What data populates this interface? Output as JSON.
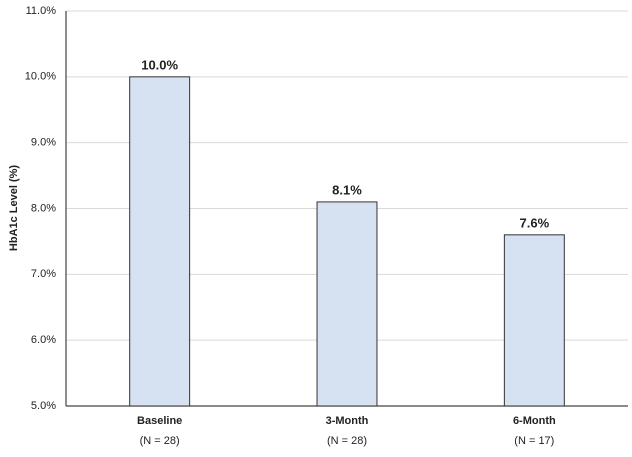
{
  "chart_data": {
    "type": "bar",
    "y_label": "HbA1c Level (%)",
    "categories": [
      "Baseline",
      "3-Month",
      "6-Month"
    ],
    "category_notes": [
      "(N = 28)",
      "(N = 28)",
      "(N = 17)"
    ],
    "values": [
      10.0,
      8.1,
      7.6
    ],
    "value_labels": [
      "10.0%",
      "8.1%",
      "7.6%"
    ],
    "color": "#d6e1f1",
    "ylim": [
      5,
      11
    ],
    "yticks": [
      {
        "value": 5,
        "label": "5.0%"
      },
      {
        "value": 6,
        "label": "6.0%"
      },
      {
        "value": 7,
        "label": "7.0%"
      },
      {
        "value": 8,
        "label": "8.0%"
      },
      {
        "value": 9,
        "label": "9.0%"
      },
      {
        "value": 10,
        "label": "10.0%"
      },
      {
        "value": 11,
        "label": "11.0%"
      }
    ],
    "grid": true
  }
}
